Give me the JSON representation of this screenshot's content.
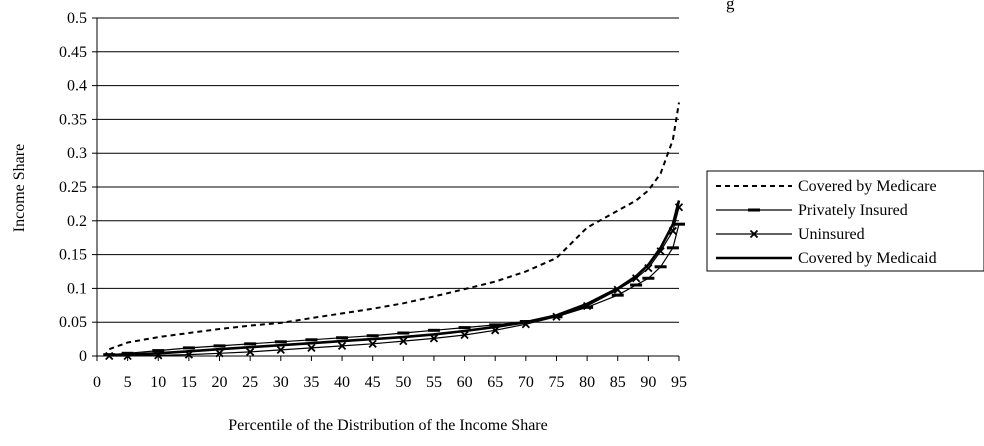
{
  "chart_data": {
    "type": "line",
    "title": "g",
    "xlabel": "Percentile of the Distribution of the Income Share",
    "ylabel": "Income Share",
    "xlim": [
      0,
      95
    ],
    "ylim": [
      0,
      0.5
    ],
    "x_ticks": [
      "0",
      "5",
      "10",
      "15",
      "20",
      "25",
      "30",
      "35",
      "40",
      "45",
      "50",
      "55",
      "60",
      "65",
      "70",
      "75",
      "80",
      "85",
      "90",
      "95"
    ],
    "y_ticks": [
      "0",
      "0.05",
      "0.1",
      "0.15",
      "0.2",
      "0.25",
      "0.3",
      "0.35",
      "0.4",
      "0.45",
      "0.5"
    ],
    "grid": "horizontal",
    "legend_position": "right",
    "x": [
      2,
      5,
      10,
      15,
      20,
      25,
      30,
      35,
      40,
      45,
      50,
      55,
      60,
      65,
      70,
      75,
      80,
      85,
      88,
      90,
      92,
      94,
      95
    ],
    "series": [
      {
        "name": "Covered by Medicare",
        "style": "dashed",
        "color": "#000000",
        "values": [
          0.01,
          0.02,
          0.028,
          0.034,
          0.04,
          0.045,
          0.049,
          0.056,
          0.063,
          0.07,
          0.078,
          0.088,
          0.099,
          0.11,
          0.125,
          0.145,
          0.19,
          0.215,
          0.23,
          0.245,
          0.27,
          0.32,
          0.375
        ]
      },
      {
        "name": "Privately Insured",
        "style": "dash-marker",
        "color": "#000000",
        "values": [
          0.002,
          0.004,
          0.008,
          0.012,
          0.015,
          0.018,
          0.021,
          0.024,
          0.027,
          0.03,
          0.034,
          0.038,
          0.042,
          0.046,
          0.051,
          0.058,
          0.072,
          0.09,
          0.105,
          0.115,
          0.132,
          0.16,
          0.195
        ]
      },
      {
        "name": "Uninsured",
        "style": "x-marker",
        "color": "#000000",
        "values": [
          0.0,
          0.0,
          0.001,
          0.002,
          0.004,
          0.006,
          0.009,
          0.012,
          0.015,
          0.018,
          0.022,
          0.026,
          0.031,
          0.038,
          0.047,
          0.058,
          0.074,
          0.098,
          0.115,
          0.13,
          0.155,
          0.185,
          0.22
        ]
      },
      {
        "name": "Covered by Medicaid",
        "style": "solid-thick",
        "color": "#000000",
        "values": [
          0.001,
          0.002,
          0.004,
          0.007,
          0.01,
          0.013,
          0.016,
          0.019,
          0.022,
          0.025,
          0.028,
          0.032,
          0.037,
          0.043,
          0.05,
          0.06,
          0.077,
          0.1,
          0.118,
          0.135,
          0.16,
          0.195,
          0.23
        ]
      }
    ]
  }
}
